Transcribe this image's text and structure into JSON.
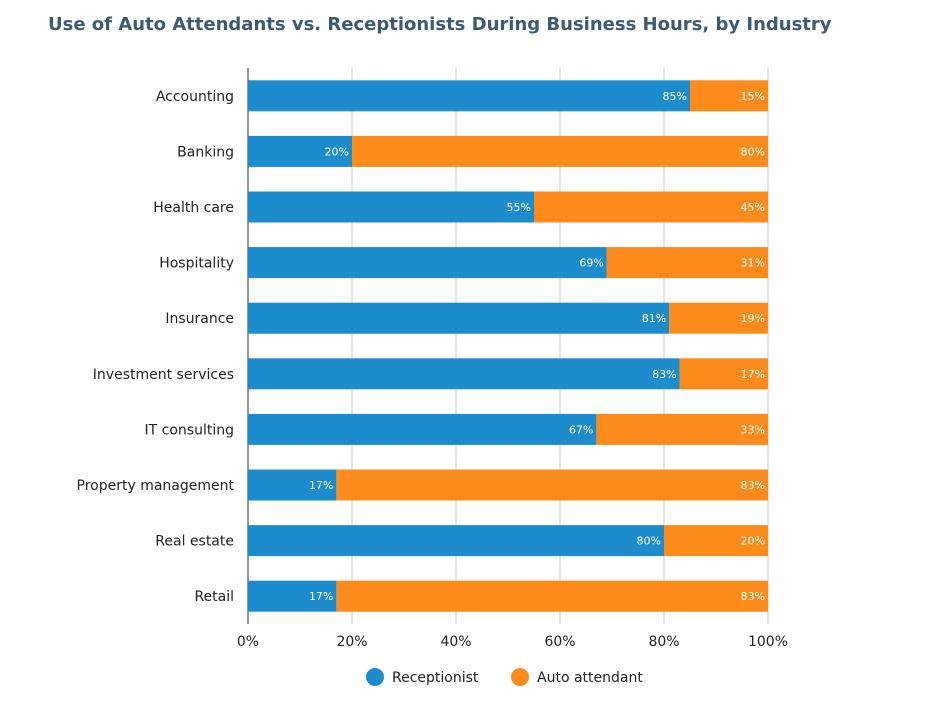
{
  "chart_data": {
    "type": "bar",
    "orientation": "horizontal",
    "stacked": true,
    "title": "Use of Auto Attendants vs. Receptionists During Business Hours, by Industry",
    "xlabel": "",
    "ylabel": "",
    "xlim": [
      0,
      100
    ],
    "x_ticks": [
      "0%",
      "20%",
      "40%",
      "60%",
      "80%",
      "100%"
    ],
    "grid": true,
    "legend_position": "bottom-center",
    "categories": [
      "Accounting",
      "Banking",
      "Health care",
      "Hospitality",
      "Insurance",
      "Investment services",
      "IT consulting",
      "Property management",
      "Real estate",
      "Retail"
    ],
    "series": [
      {
        "name": "Receptionist",
        "color": "#1c8ccc",
        "values": [
          85,
          20,
          55,
          69,
          81,
          83,
          67,
          17,
          80,
          17
        ],
        "labels": [
          "85%",
          "20%",
          "55%",
          "69%",
          "81%",
          "83%",
          "67%",
          "17%",
          "80%",
          "17%"
        ]
      },
      {
        "name": "Auto attendant",
        "color": "#fc8b1c",
        "values": [
          15,
          80,
          45,
          31,
          19,
          17,
          33,
          83,
          20,
          83
        ],
        "labels": [
          "15%",
          "80%",
          "45%",
          "31%",
          "19%",
          "17%",
          "33%",
          "83%",
          "20%",
          "83%"
        ]
      }
    ]
  }
}
